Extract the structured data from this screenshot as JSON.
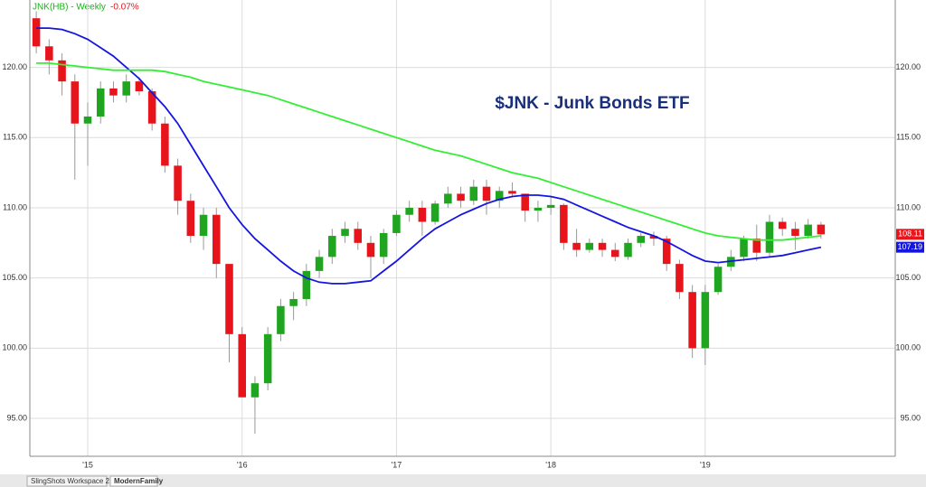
{
  "header": {
    "symbol": "JNK(HB) - Weekly",
    "change": "-0.07%"
  },
  "tabs": [
    "SlingShots Workspace 2",
    "ModernFamily"
  ],
  "chart_data": {
    "type": "candlestick",
    "title": "$JNK - Junk Bonds ETF",
    "categories": [
      null,
      null,
      null,
      null,
      "'15",
      null,
      null,
      null,
      null,
      null,
      null,
      null,
      null,
      null,
      null,
      null,
      "'16",
      null,
      null,
      null,
      null,
      null,
      null,
      null,
      null,
      null,
      null,
      null,
      "'17",
      null,
      null,
      null,
      null,
      null,
      null,
      null,
      null,
      null,
      null,
      null,
      "'18",
      null,
      null,
      null,
      null,
      null,
      null,
      null,
      null,
      null,
      null,
      null,
      "'19",
      null,
      null,
      null,
      null,
      null,
      null,
      null,
      null,
      null
    ],
    "open": [
      123.5,
      121.5,
      120.5,
      119,
      116,
      116.5,
      118.5,
      118,
      119,
      118.3,
      116,
      113,
      110.5,
      108,
      109.5,
      106,
      101,
      96.5,
      97.5,
      101,
      103,
      103.5,
      105.5,
      106.5,
      108,
      108.5,
      107.5,
      106.5,
      108.2,
      109.5,
      110,
      109,
      110.3,
      111,
      110.5,
      111.5,
      110.5,
      111.2,
      111,
      109.8,
      110,
      110.2,
      107.5,
      107,
      107.5,
      107,
      106.5,
      107.5,
      108,
      107.8,
      106,
      104,
      100,
      104,
      105.8,
      106.5,
      107.8,
      106.8,
      109,
      108.5,
      108,
      108.8
    ],
    "high": [
      124,
      122,
      121,
      119.5,
      117.5,
      119,
      119,
      119.5,
      119.3,
      118.5,
      116.5,
      113.5,
      111,
      110,
      110,
      106,
      101.5,
      98,
      101.5,
      103.5,
      104,
      106,
      107,
      108.5,
      109,
      109,
      108,
      108.5,
      109.8,
      110.5,
      110.5,
      110.5,
      111.5,
      111.5,
      112,
      112,
      111.5,
      111.8,
      111,
      110.5,
      110.8,
      110.3,
      108.5,
      107.8,
      107.8,
      107.5,
      107.8,
      108.2,
      108.3,
      108,
      106.3,
      104.5,
      104.5,
      106,
      107,
      108,
      108.8,
      109.5,
      109.3,
      109,
      109.2,
      109
    ],
    "low": [
      121,
      119.5,
      118,
      112,
      113,
      116,
      117.5,
      117.5,
      118,
      115.5,
      112.5,
      109.5,
      107.5,
      107,
      105,
      99,
      96.5,
      93.9,
      97,
      100.5,
      102,
      103,
      105,
      106,
      107.5,
      107,
      105,
      106,
      108,
      109,
      108,
      108.8,
      110,
      110,
      110.2,
      109.5,
      110,
      110.8,
      109,
      109,
      109.5,
      107,
      106.5,
      106.8,
      106.5,
      106.2,
      106.3,
      107.2,
      107.3,
      105.5,
      103.5,
      99.3,
      98.8,
      103.8,
      105.5,
      106.2,
      106.2,
      106.5,
      108,
      107,
      107.8,
      107.8
    ],
    "close": [
      121.5,
      120.5,
      119,
      116,
      116.5,
      118.5,
      118,
      119,
      118.3,
      116,
      113,
      110.5,
      108,
      109.5,
      106,
      101,
      96.5,
      97.5,
      101,
      103,
      103.5,
      105.5,
      106.5,
      108,
      108.5,
      107.5,
      106.5,
      108.2,
      109.5,
      110,
      109,
      110.3,
      111,
      110.5,
      111.5,
      110.5,
      111.2,
      111,
      109.8,
      110,
      110.2,
      107.5,
      107,
      107.5,
      107,
      106.5,
      107.5,
      108,
      107.8,
      106,
      104,
      100,
      104,
      105.8,
      106.5,
      107.8,
      106.8,
      109,
      108.5,
      108,
      108.8,
      108.11
    ],
    "up_color": "#1fa51f",
    "down_color": "#e8141b",
    "lines": [
      {
        "color": "#1515e0",
        "values": [
          122.8,
          122.8,
          122.7,
          122.4,
          122,
          121.4,
          120.8,
          120,
          119.2,
          118.2,
          117.2,
          116,
          114.5,
          113,
          111.5,
          110,
          108.8,
          107.8,
          107,
          106.2,
          105.5,
          105,
          104.7,
          104.6,
          104.6,
          104.7,
          104.8,
          105.5,
          106.2,
          107,
          107.8,
          108.5,
          109,
          109.5,
          109.9,
          110.3,
          110.6,
          110.8,
          110.9,
          110.9,
          110.8,
          110.6,
          110.2,
          109.8,
          109.4,
          109,
          108.6,
          108.3,
          108,
          107.6,
          107.1,
          106.6,
          106.2,
          106.1,
          106.2,
          106.3,
          106.4,
          106.5,
          106.6,
          106.8,
          107,
          107.19
        ]
      },
      {
        "color": "#33ee33",
        "values": [
          120.3,
          120.3,
          120.2,
          120.1,
          120,
          119.9,
          119.8,
          119.8,
          119.8,
          119.8,
          119.7,
          119.5,
          119.3,
          119,
          118.8,
          118.6,
          118.4,
          118.2,
          118,
          117.7,
          117.4,
          117.1,
          116.8,
          116.5,
          116.2,
          115.9,
          115.6,
          115.3,
          115,
          114.7,
          114.4,
          114.1,
          113.9,
          113.7,
          113.4,
          113.1,
          112.8,
          112.5,
          112.3,
          112.1,
          111.8,
          111.5,
          111.2,
          110.9,
          110.6,
          110.3,
          110,
          109.7,
          109.4,
          109.1,
          108.8,
          108.5,
          108.2,
          108,
          107.9,
          107.8,
          107.7,
          107.7,
          107.7,
          107.8,
          107.9,
          108
        ]
      }
    ],
    "ylim": [
      92.3,
      124.8
    ],
    "yticks": [
      {
        "value": 95,
        "label": "95.00"
      },
      {
        "value": 100,
        "label": "100.00"
      },
      {
        "value": 105,
        "label": "105.00"
      },
      {
        "value": 110,
        "label": "110.00"
      },
      {
        "value": 115,
        "label": "115.00"
      },
      {
        "value": 120,
        "label": "120.00"
      }
    ],
    "grid": true
  }
}
